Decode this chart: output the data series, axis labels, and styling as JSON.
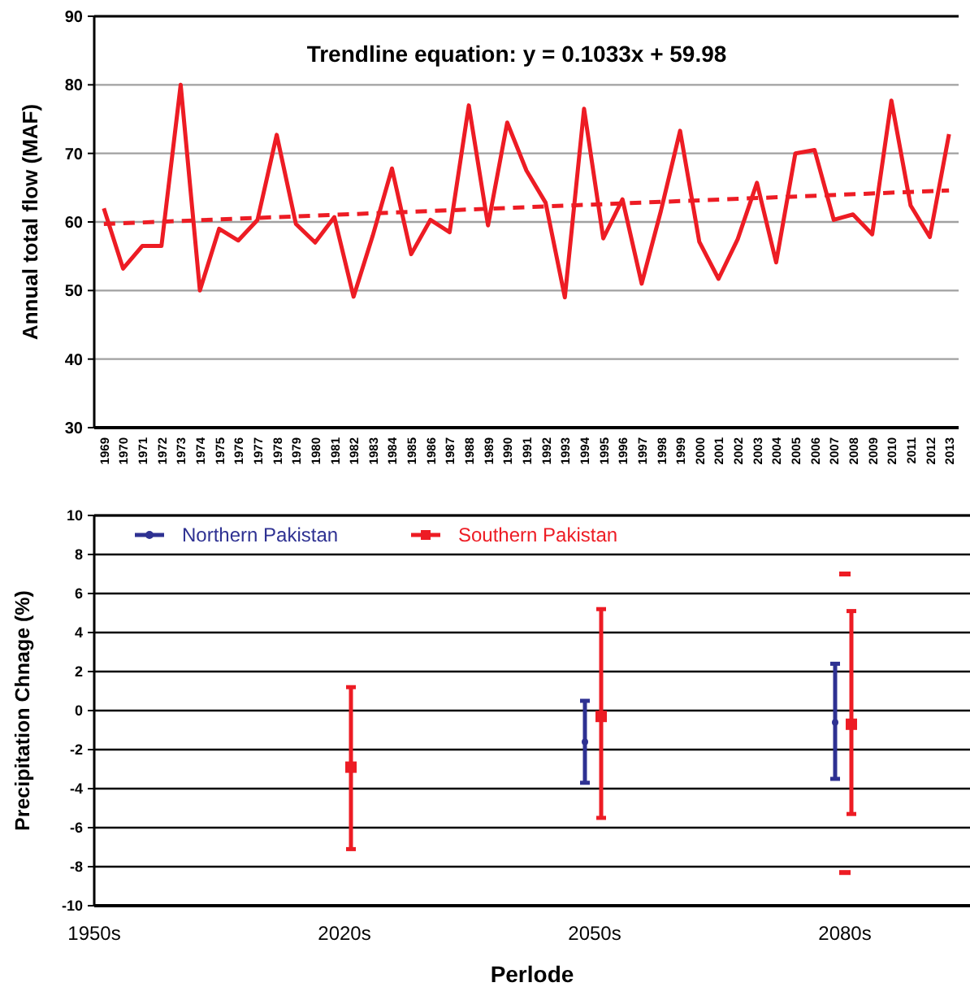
{
  "chart_data": [
    {
      "type": "line",
      "title": "Trendline equation: y = 0.1033x + 59.98",
      "ylabel": "Annual total flow (MAF)",
      "categories": [
        "1969",
        "1970",
        "1971",
        "1972",
        "1973",
        "1974",
        "1975",
        "1976",
        "1977",
        "1978",
        "1979",
        "1980",
        "1981",
        "1982",
        "1983",
        "1984",
        "1985",
        "1986",
        "1987",
        "1988",
        "1989",
        "1990",
        "1991",
        "1992",
        "1993",
        "1994",
        "1995",
        "1996",
        "1997",
        "1998",
        "1999",
        "2000",
        "2001",
        "2002",
        "2003",
        "2004",
        "2005",
        "2006",
        "2007",
        "2008",
        "2009",
        "2010",
        "2011",
        "2012",
        "2013"
      ],
      "series": [
        {
          "color": "#ed1c24",
          "values": [
            62,
            53.2,
            56.5,
            56.5,
            80,
            50,
            59,
            57.3,
            60.3,
            72.7,
            59.7,
            57,
            60.7,
            49.1,
            58,
            67.8,
            55.3,
            60.3,
            58.5,
            77,
            59.5,
            74.5,
            67.5,
            62.8,
            49,
            76.5,
            57.6,
            63.3,
            51,
            61.6,
            73.3,
            57.1,
            51.7,
            57.5,
            65.7,
            54.1,
            70,
            70.5,
            60.3,
            61.1,
            58.2,
            77.7,
            62.4,
            57.8,
            72.8
          ]
        },
        {
          "type": "line",
          "color": "#ed1c24",
          "line_style": "dashed",
          "values": [
            59.7,
            null,
            null,
            null,
            null,
            null,
            null,
            null,
            null,
            null,
            null,
            null,
            null,
            null,
            null,
            null,
            null,
            null,
            null,
            null,
            null,
            null,
            null,
            null,
            null,
            null,
            null,
            null,
            null,
            null,
            null,
            null,
            null,
            null,
            null,
            null,
            null,
            null,
            null,
            null,
            null,
            null,
            null,
            null,
            64.6
          ]
        }
      ],
      "ylim": [
        30,
        90
      ],
      "yticks": [
        30,
        40,
        50,
        60,
        70,
        80,
        90
      ],
      "grid": "y"
    },
    {
      "type": "scatter",
      "xlabel": "Perlode",
      "ylabel": "Precipitation Chnage (%)",
      "categories": [
        "1950s",
        "2020s",
        "2050s",
        "2080s"
      ],
      "series": [
        {
          "name": "Northern Pakistan",
          "color": "#2e3192",
          "marker": "circle",
          "values": [
            null,
            null,
            -1.6,
            -0.6
          ],
          "errors": [
            null,
            null,
            [
              -3.7,
              0.5
            ],
            [
              -3.5,
              2.4
            ]
          ]
        },
        {
          "name": "Southern Pakistan",
          "color": "#ed1c24",
          "marker": "square",
          "values": [
            null,
            -2.9,
            -0.3,
            -0.7
          ],
          "errors": [
            null,
            [
              -7.1,
              1.2
            ],
            [
              -5.5,
              5.2
            ],
            [
              -5.3,
              5.1
            ]
          ]
        },
        {
          "type": "scatter",
          "color": "#ed1c24",
          "x": [
            "2080s",
            "2080s"
          ],
          "values": [
            7.0,
            -8.3
          ]
        }
      ],
      "ylim": [
        -10,
        10
      ],
      "yticks": [
        -10,
        -8,
        -6,
        -4,
        -2,
        0,
        2,
        4,
        6,
        8,
        10
      ],
      "grid": "y",
      "legend": "top left"
    }
  ]
}
